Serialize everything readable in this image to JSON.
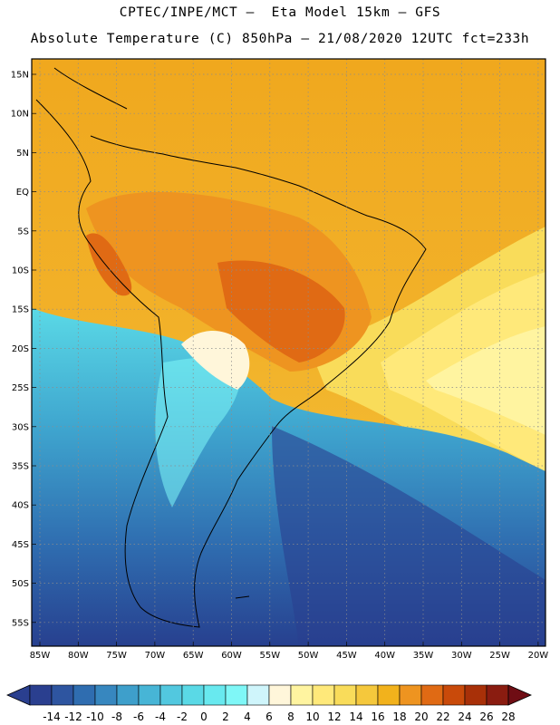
{
  "header": {
    "line1": "CPTEC/INPE/MCT –  Eta Model 15km – GFS",
    "line2": "Absolute Temperature (C) 850hPa – 21/08/2020 12UTC fct=233h"
  },
  "map": {
    "lat_labels": [
      "15N",
      "10N",
      "5N",
      "EQ",
      "5S",
      "10S",
      "15S",
      "20S",
      "25S",
      "30S",
      "35S",
      "40S",
      "45S",
      "50S",
      "55S"
    ],
    "lon_labels": [
      "85W",
      "80W",
      "75W",
      "70W",
      "65W",
      "60W",
      "55W",
      "50W",
      "45W",
      "40W",
      "35W",
      "30W",
      "25W",
      "20W"
    ]
  },
  "colorbar": {
    "labels": [
      "-14",
      "-12",
      "-10",
      "-8",
      "-6",
      "-4",
      "-2",
      "0",
      "2",
      "4",
      "6",
      "8",
      "10",
      "12",
      "14",
      "16",
      "18",
      "20",
      "22",
      "24",
      "26",
      "28"
    ],
    "colors": [
      "#2a3f8f",
      "#2e55a0",
      "#2f6db0",
      "#3787bf",
      "#3e9fcb",
      "#47b5d6",
      "#52c8df",
      "#5ad9e6",
      "#68e9ef",
      "#7ff7f7",
      "#cff5fb",
      "#fff6da",
      "#fff4a0",
      "#ffe97a",
      "#f9dc5a",
      "#f5c83c",
      "#f2b21c",
      "#ee9420",
      "#e06a14",
      "#c94a0a",
      "#a83008",
      "#8a1c10",
      "#6f0d14"
    ]
  }
}
